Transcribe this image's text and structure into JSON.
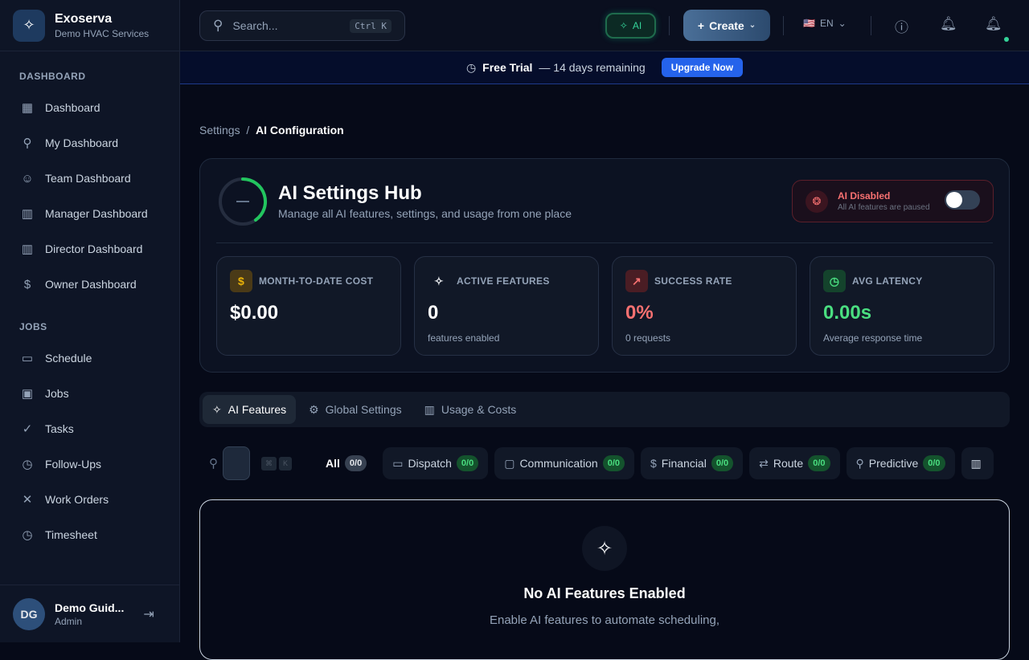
{
  "brand": {
    "name": "Exoserva",
    "sub": "Demo HVAC Services"
  },
  "sidebar": {
    "sections": [
      {
        "title": "DASHBOARD",
        "items": [
          {
            "label": "Dashboard",
            "icon": "▦"
          },
          {
            "label": "My Dashboard",
            "icon": "⚲"
          },
          {
            "label": "Team Dashboard",
            "icon": "☺"
          },
          {
            "label": "Manager Dashboard",
            "icon": "▥"
          },
          {
            "label": "Director Dashboard",
            "icon": "▥"
          },
          {
            "label": "Owner Dashboard",
            "icon": "$"
          }
        ]
      },
      {
        "title": "JOBS",
        "items": [
          {
            "label": "Schedule",
            "icon": "▭"
          },
          {
            "label": "Jobs",
            "icon": "▣"
          },
          {
            "label": "Tasks",
            "icon": "✓"
          },
          {
            "label": "Follow-Ups",
            "icon": "◷"
          },
          {
            "label": "Work Orders",
            "icon": "✕"
          },
          {
            "label": "Timesheet",
            "icon": "◷"
          }
        ]
      }
    ]
  },
  "user": {
    "initials": "DG",
    "name": "Demo Guid...",
    "role": "Admin"
  },
  "topbar": {
    "search_placeholder": "Search...",
    "search_shortcut": "Ctrl K",
    "ai_label": "AI",
    "create_label": "Create",
    "lang": "EN",
    "flag": "🇺🇸"
  },
  "banner": {
    "title": "Free Trial",
    "text": "— 14 days remaining",
    "button": "Upgrade Now"
  },
  "breadcrumb": {
    "parent": "Settings",
    "current": "AI Configuration"
  },
  "hub": {
    "title": "AI Settings Hub",
    "subtitle": "Manage all AI features, settings, and usage from one place",
    "status_title": "AI Disabled",
    "status_sub": "All AI features are paused",
    "ai_enabled": false
  },
  "stats": [
    {
      "label": "MONTH-TO-DATE COST",
      "value": "$0.00",
      "sub": "",
      "icon": "$",
      "color": "#ffffff",
      "icon_color": "#eab308",
      "icon_bg": "#4a3a17"
    },
    {
      "label": "ACTIVE FEATURES",
      "value": "0",
      "sub": "features enabled",
      "icon": "✧",
      "color": "#ffffff",
      "icon_color": "#e5e7eb",
      "icon_bg": "transparent"
    },
    {
      "label": "SUCCESS RATE",
      "value": "0%",
      "sub": "0 requests",
      "icon": "↗",
      "color": "#f87171",
      "icon_color": "#f87171",
      "icon_bg": "#4a1d24"
    },
    {
      "label": "AVG LATENCY",
      "value": "0.00s",
      "sub": "Average response time",
      "icon": "◷",
      "color": "#4ade80",
      "icon_color": "#4ade80",
      "icon_bg": "#14432c"
    }
  ],
  "tabs": [
    {
      "label": "AI Features",
      "icon": "✧"
    },
    {
      "label": "Global Settings",
      "icon": "⚙"
    },
    {
      "label": "Usage & Costs",
      "icon": "▥"
    }
  ],
  "filters": {
    "shortcut": [
      "⌘",
      "K"
    ],
    "all": {
      "label": "All",
      "count": "0/0"
    },
    "chips": [
      {
        "label": "Dispatch",
        "icon": "▭",
        "count": "0/0"
      },
      {
        "label": "Communication",
        "icon": "▢",
        "count": "0/0"
      },
      {
        "label": "Financial",
        "icon": "$",
        "count": "0/0"
      },
      {
        "label": "Route",
        "icon": "⇄",
        "count": "0/0"
      },
      {
        "label": "Predictive",
        "icon": "⚲",
        "count": "0/0"
      }
    ]
  },
  "empty": {
    "title": "No AI Features Enabled",
    "text": "Enable AI features to automate scheduling,"
  }
}
